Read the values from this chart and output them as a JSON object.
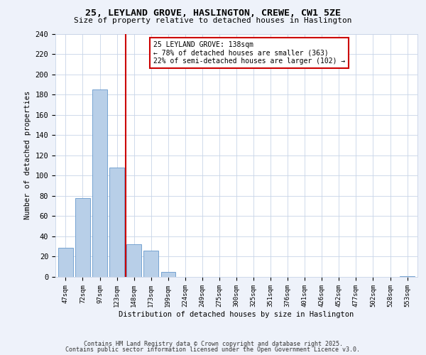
{
  "title": "25, LEYLAND GROVE, HASLINGTON, CREWE, CW1 5ZE",
  "subtitle": "Size of property relative to detached houses in Haslington",
  "xlabel": "Distribution of detached houses by size in Haslington",
  "ylabel": "Number of detached properties",
  "categories": [
    "47sqm",
    "72sqm",
    "97sqm",
    "123sqm",
    "148sqm",
    "173sqm",
    "199sqm",
    "224sqm",
    "249sqm",
    "275sqm",
    "300sqm",
    "325sqm",
    "351sqm",
    "376sqm",
    "401sqm",
    "426sqm",
    "452sqm",
    "477sqm",
    "502sqm",
    "528sqm",
    "553sqm"
  ],
  "values": [
    29,
    78,
    185,
    108,
    32,
    26,
    5,
    0,
    0,
    0,
    0,
    0,
    0,
    0,
    0,
    0,
    0,
    0,
    0,
    0,
    1
  ],
  "bar_color": "#b8cfe8",
  "bar_edge_color": "#6699cc",
  "vline_x": 3.5,
  "vline_color": "#cc0000",
  "annotation_title": "25 LEYLAND GROVE: 138sqm",
  "annotation_line1": "← 78% of detached houses are smaller (363)",
  "annotation_line2": "22% of semi-detached houses are larger (102) →",
  "annotation_box_color": "#ffffff",
  "annotation_box_edge": "#cc0000",
  "ylim": [
    0,
    240
  ],
  "yticks": [
    0,
    20,
    40,
    60,
    80,
    100,
    120,
    140,
    160,
    180,
    200,
    220,
    240
  ],
  "footnote1": "Contains HM Land Registry data © Crown copyright and database right 2025.",
  "footnote2": "Contains public sector information licensed under the Open Government Licence v3.0.",
  "bg_color": "#eef2fa",
  "plot_bg_color": "#ffffff",
  "grid_color": "#c8d4e8"
}
